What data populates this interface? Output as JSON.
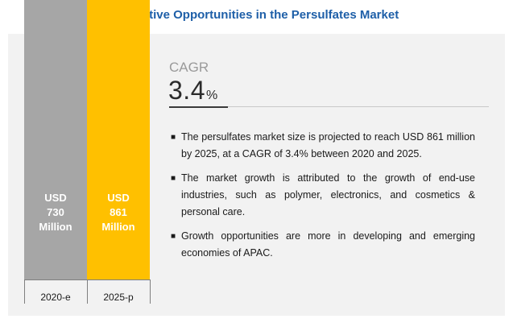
{
  "title": "Attractive Opportunities in the Persulfates Market",
  "cagr": {
    "label": "CAGR",
    "value": "3.4",
    "unit": "%"
  },
  "bullets": [
    "The persulfates market size is projected to reach USD 861 million by 2025, at a CAGR of 3.4% between 2020 and 2025.",
    "The market growth is attributed to the growth of end-use industries, such as polymer, electronics, and cosmetics & personal care.",
    "Growth opportunities are more in developing and emerging economies of APAC."
  ],
  "colors": {
    "title": "#1e5fa8",
    "bar_2020": "#a6a6a6",
    "bar_2025": "#ffc000",
    "panel": "#f2f2f2"
  },
  "chart_data": {
    "type": "bar",
    "categories": [
      "2020-e",
      "2025-p"
    ],
    "values": [
      730,
      861
    ],
    "unit": "USD Million",
    "data_labels": [
      [
        "USD",
        "730",
        "Million"
      ],
      [
        "USD",
        "861",
        "Million"
      ]
    ],
    "colors": [
      "#a6a6a6",
      "#ffc000"
    ],
    "ylim": [
      0,
      1000
    ],
    "grid": false,
    "legend": "none"
  }
}
